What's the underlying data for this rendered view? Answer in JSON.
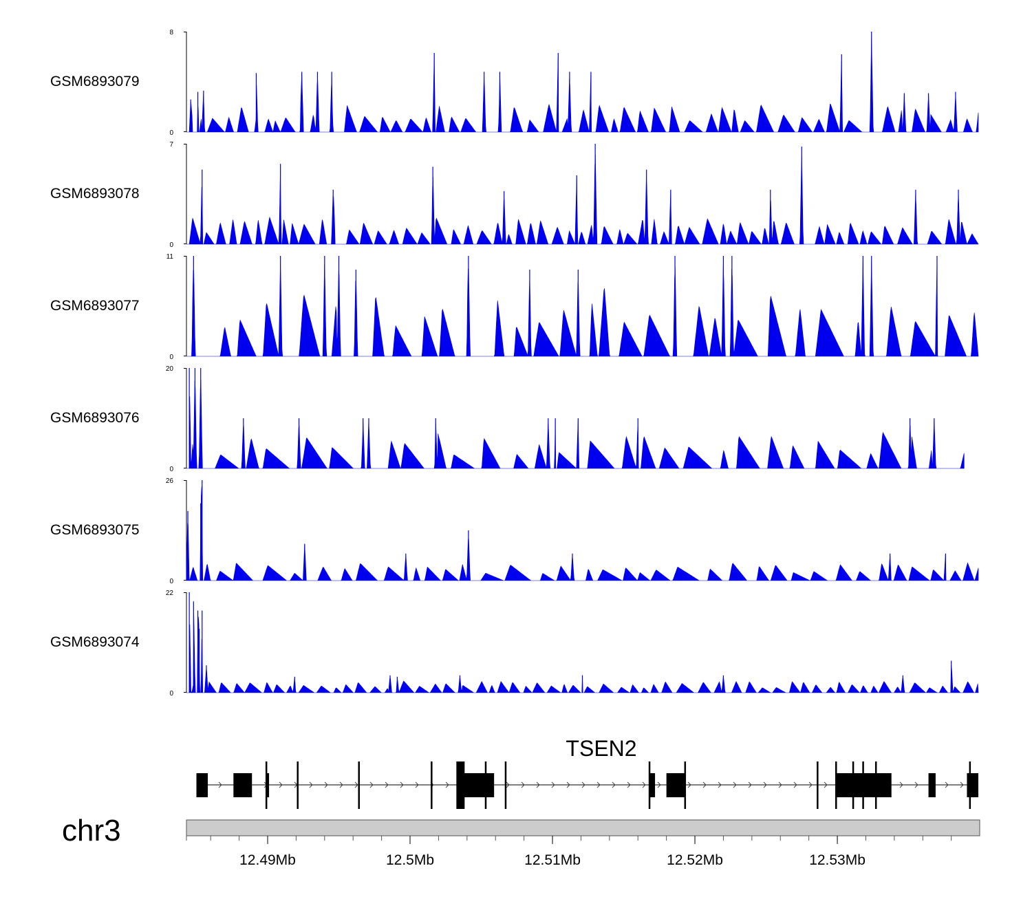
{
  "chart_data": {
    "type": "area",
    "title": "",
    "chromosome": "chr3",
    "x_range_mb": [
      12.4843,
      12.5399
    ],
    "x_ticks": [
      {
        "value": 12.49,
        "label": "12.49Mb"
      },
      {
        "value": 12.5,
        "label": "12.5Mb"
      },
      {
        "value": 12.51,
        "label": "12.51Mb"
      },
      {
        "value": 12.52,
        "label": "12.52Mb"
      },
      {
        "value": 12.53,
        "label": "12.53Mb"
      }
    ],
    "tracks": [
      {
        "name": "GSM6893079",
        "ymin": 0,
        "ymax": 8,
        "ymin_label": "0",
        "ymax_label": "8",
        "base_peak": 1.6,
        "base_gap": 0.0006,
        "peaks": [
          [
            12.4846,
            2.6
          ],
          [
            12.4851,
            3.2
          ],
          [
            12.4855,
            3.3
          ],
          [
            12.4892,
            4.7
          ],
          [
            12.4924,
            4.8
          ],
          [
            12.4935,
            4.8
          ],
          [
            12.4945,
            4.8
          ],
          [
            12.5017,
            6.3
          ],
          [
            12.5052,
            4.8
          ],
          [
            12.5063,
            4.8
          ],
          [
            12.5104,
            6.3
          ],
          [
            12.5112,
            4.8
          ],
          [
            12.5127,
            4.8
          ],
          [
            12.5303,
            6.2
          ],
          [
            12.5324,
            8.0
          ],
          [
            12.5347,
            3.1
          ],
          [
            12.5364,
            3.1
          ],
          [
            12.5383,
            3.2
          ]
        ]
      },
      {
        "name": "GSM6893078",
        "ymin": 0,
        "ymax": 7,
        "ymin_label": "0",
        "ymax_label": "7",
        "base_peak": 1.3,
        "base_gap": 0.0005,
        "peaks": [
          [
            12.4854,
            5.2
          ],
          [
            12.4909,
            5.6
          ],
          [
            12.4946,
            3.8
          ],
          [
            12.5016,
            5.4
          ],
          [
            12.5066,
            3.7
          ],
          [
            12.5117,
            4.8
          ],
          [
            12.513,
            7.0
          ],
          [
            12.5166,
            5.2
          ],
          [
            12.5183,
            3.8
          ],
          [
            12.5253,
            3.8
          ],
          [
            12.5275,
            6.8
          ],
          [
            12.5355,
            3.8
          ],
          [
            12.5385,
            3.8
          ]
        ]
      },
      {
        "name": "GSM6893077",
        "ymin": 0,
        "ymax": 11,
        "ymin_label": "0",
        "ymax_label": "11",
        "base_peak": 5.5,
        "base_gap": 0.0014,
        "peaks": [
          [
            12.4848,
            11.0
          ],
          [
            12.4909,
            11.0
          ],
          [
            12.494,
            11.0
          ],
          [
            12.495,
            11.0
          ],
          [
            12.4962,
            9.5
          ],
          [
            12.5041,
            11.0
          ],
          [
            12.5084,
            9.5
          ],
          [
            12.5118,
            9.5
          ],
          [
            12.5186,
            11.0
          ],
          [
            12.522,
            11.0
          ],
          [
            12.5226,
            11.0
          ],
          [
            12.5318,
            11.0
          ],
          [
            12.5324,
            11.0
          ],
          [
            12.537,
            11.0
          ]
        ]
      },
      {
        "name": "GSM6893076",
        "ymin": 0,
        "ymax": 20,
        "ymin_label": "0",
        "ymax_label": "20",
        "base_peak": 5.0,
        "base_gap": 0.0016,
        "x_end_mb": 12.5389,
        "peaks": [
          [
            12.4845,
            20.0
          ],
          [
            12.4849,
            20.0
          ],
          [
            12.4853,
            20.0
          ],
          [
            12.4883,
            10.0
          ],
          [
            12.4922,
            10.0
          ],
          [
            12.4967,
            10.0
          ],
          [
            12.4971,
            10.0
          ],
          [
            12.5018,
            10.0
          ],
          [
            12.5097,
            10.0
          ],
          [
            12.5102,
            10.0
          ],
          [
            12.5118,
            10.0
          ],
          [
            12.516,
            10.0
          ],
          [
            12.5351,
            10.0
          ],
          [
            12.5368,
            10.0
          ]
        ]
      },
      {
        "name": "GSM6893075",
        "ymin": 0,
        "ymax": 26,
        "ymin_label": "0",
        "ymax_label": "26",
        "base_peak": 3.2,
        "base_gap": 0.0012,
        "peaks": [
          [
            12.4844,
            18.0
          ],
          [
            12.4853,
            20.0
          ],
          [
            12.4854,
            26.0
          ],
          [
            12.4926,
            9.5
          ],
          [
            12.4997,
            7.0
          ],
          [
            12.5041,
            13.0
          ],
          [
            12.5114,
            7.0
          ],
          [
            12.5337,
            7.0
          ],
          [
            12.5376,
            7.0
          ]
        ]
      },
      {
        "name": "GSM6893074",
        "ymin": 0,
        "ymax": 22,
        "ymin_label": "0",
        "ymax_label": "22",
        "base_peak": 1.8,
        "base_gap": 0.0005,
        "peaks": [
          [
            12.4845,
            22.0
          ],
          [
            12.4848,
            20.0
          ],
          [
            12.4851,
            18.0
          ],
          [
            12.4852,
            14.0
          ],
          [
            12.4854,
            18.0
          ],
          [
            12.4857,
            6.0
          ],
          [
            12.4919,
            3.5
          ],
          [
            12.4986,
            3.8
          ],
          [
            12.4991,
            3.5
          ],
          [
            12.5035,
            3.8
          ],
          [
            12.5121,
            3.8
          ],
          [
            12.522,
            3.8
          ],
          [
            12.5346,
            3.8
          ],
          [
            12.538,
            7.0
          ]
        ]
      }
    ],
    "gene": {
      "name": "TSEN2",
      "strand": "+",
      "exons_mb": [
        [
          12.485,
          12.4858
        ],
        [
          12.4876,
          12.4889
        ],
        [
          12.4899,
          12.4901
        ],
        [
          12.5033,
          12.5059
        ],
        [
          12.5168,
          12.5172
        ],
        [
          12.518,
          12.5193
        ],
        [
          12.5299,
          12.5338
        ],
        [
          12.5364,
          12.5369
        ],
        [
          12.5391,
          12.5399
        ]
      ],
      "tall_markers_mb": [
        12.4899,
        12.4921,
        12.4964,
        12.5015,
        12.5033,
        12.5053,
        12.5067,
        12.5168,
        12.5193,
        12.5286,
        12.5299,
        12.5311,
        12.5318,
        12.5327,
        12.5393
      ]
    }
  }
}
